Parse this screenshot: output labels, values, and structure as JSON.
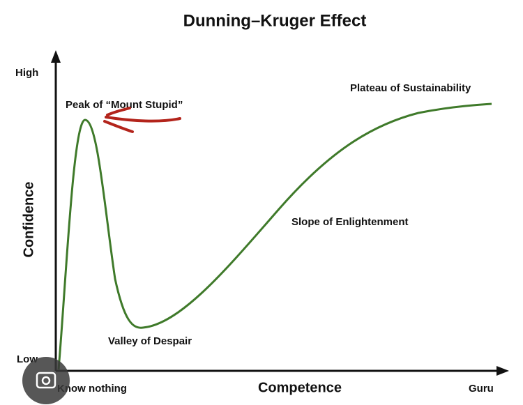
{
  "title": "Dunning–Kruger Effect",
  "axes": {
    "y_label": "Confidence",
    "x_label": "Competence",
    "y_high": "High",
    "y_low": "Low",
    "x_start": "Know nothing",
    "x_end": "Guru"
  },
  "stages": [
    "Peak of “Mount Stupid”",
    "Valley of Despair",
    "Slope of Enlightenment",
    "Plateau of Sustainability"
  ]
}
